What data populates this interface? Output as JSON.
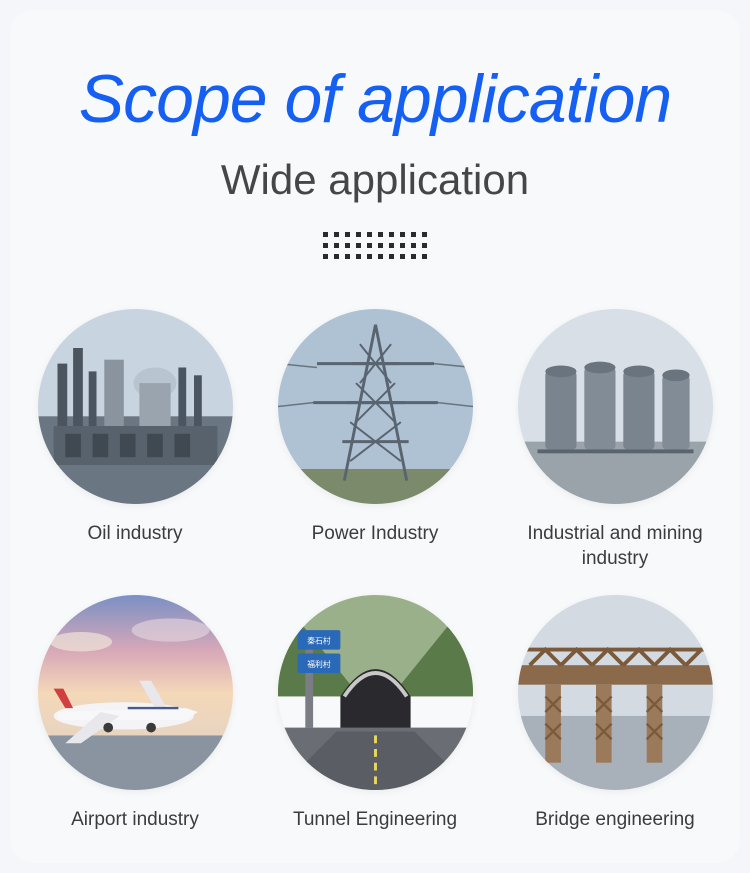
{
  "title": "Scope of application",
  "subtitle": "Wide application",
  "title_color": "#1560f2",
  "subtitle_color": "#444648",
  "label_color": "#3a3c3e",
  "card_bg": "#f8f9fb",
  "body_bg": "#f4f6f9",
  "dot_color": "#2b2b2b",
  "dot_rows": 3,
  "dot_cols": 10,
  "items": [
    {
      "label": "Oil industry",
      "image_semantic": "oil-refinery"
    },
    {
      "label": "Power Industry",
      "image_semantic": "power-transmission-tower"
    },
    {
      "label": "Industrial and mining industry",
      "image_semantic": "industrial-silos"
    },
    {
      "label": "Airport industry",
      "image_semantic": "airplane-airport"
    },
    {
      "label": "Tunnel Engineering",
      "image_semantic": "road-tunnel"
    },
    {
      "label": "Bridge engineering",
      "image_semantic": "bridge-construction"
    }
  ]
}
